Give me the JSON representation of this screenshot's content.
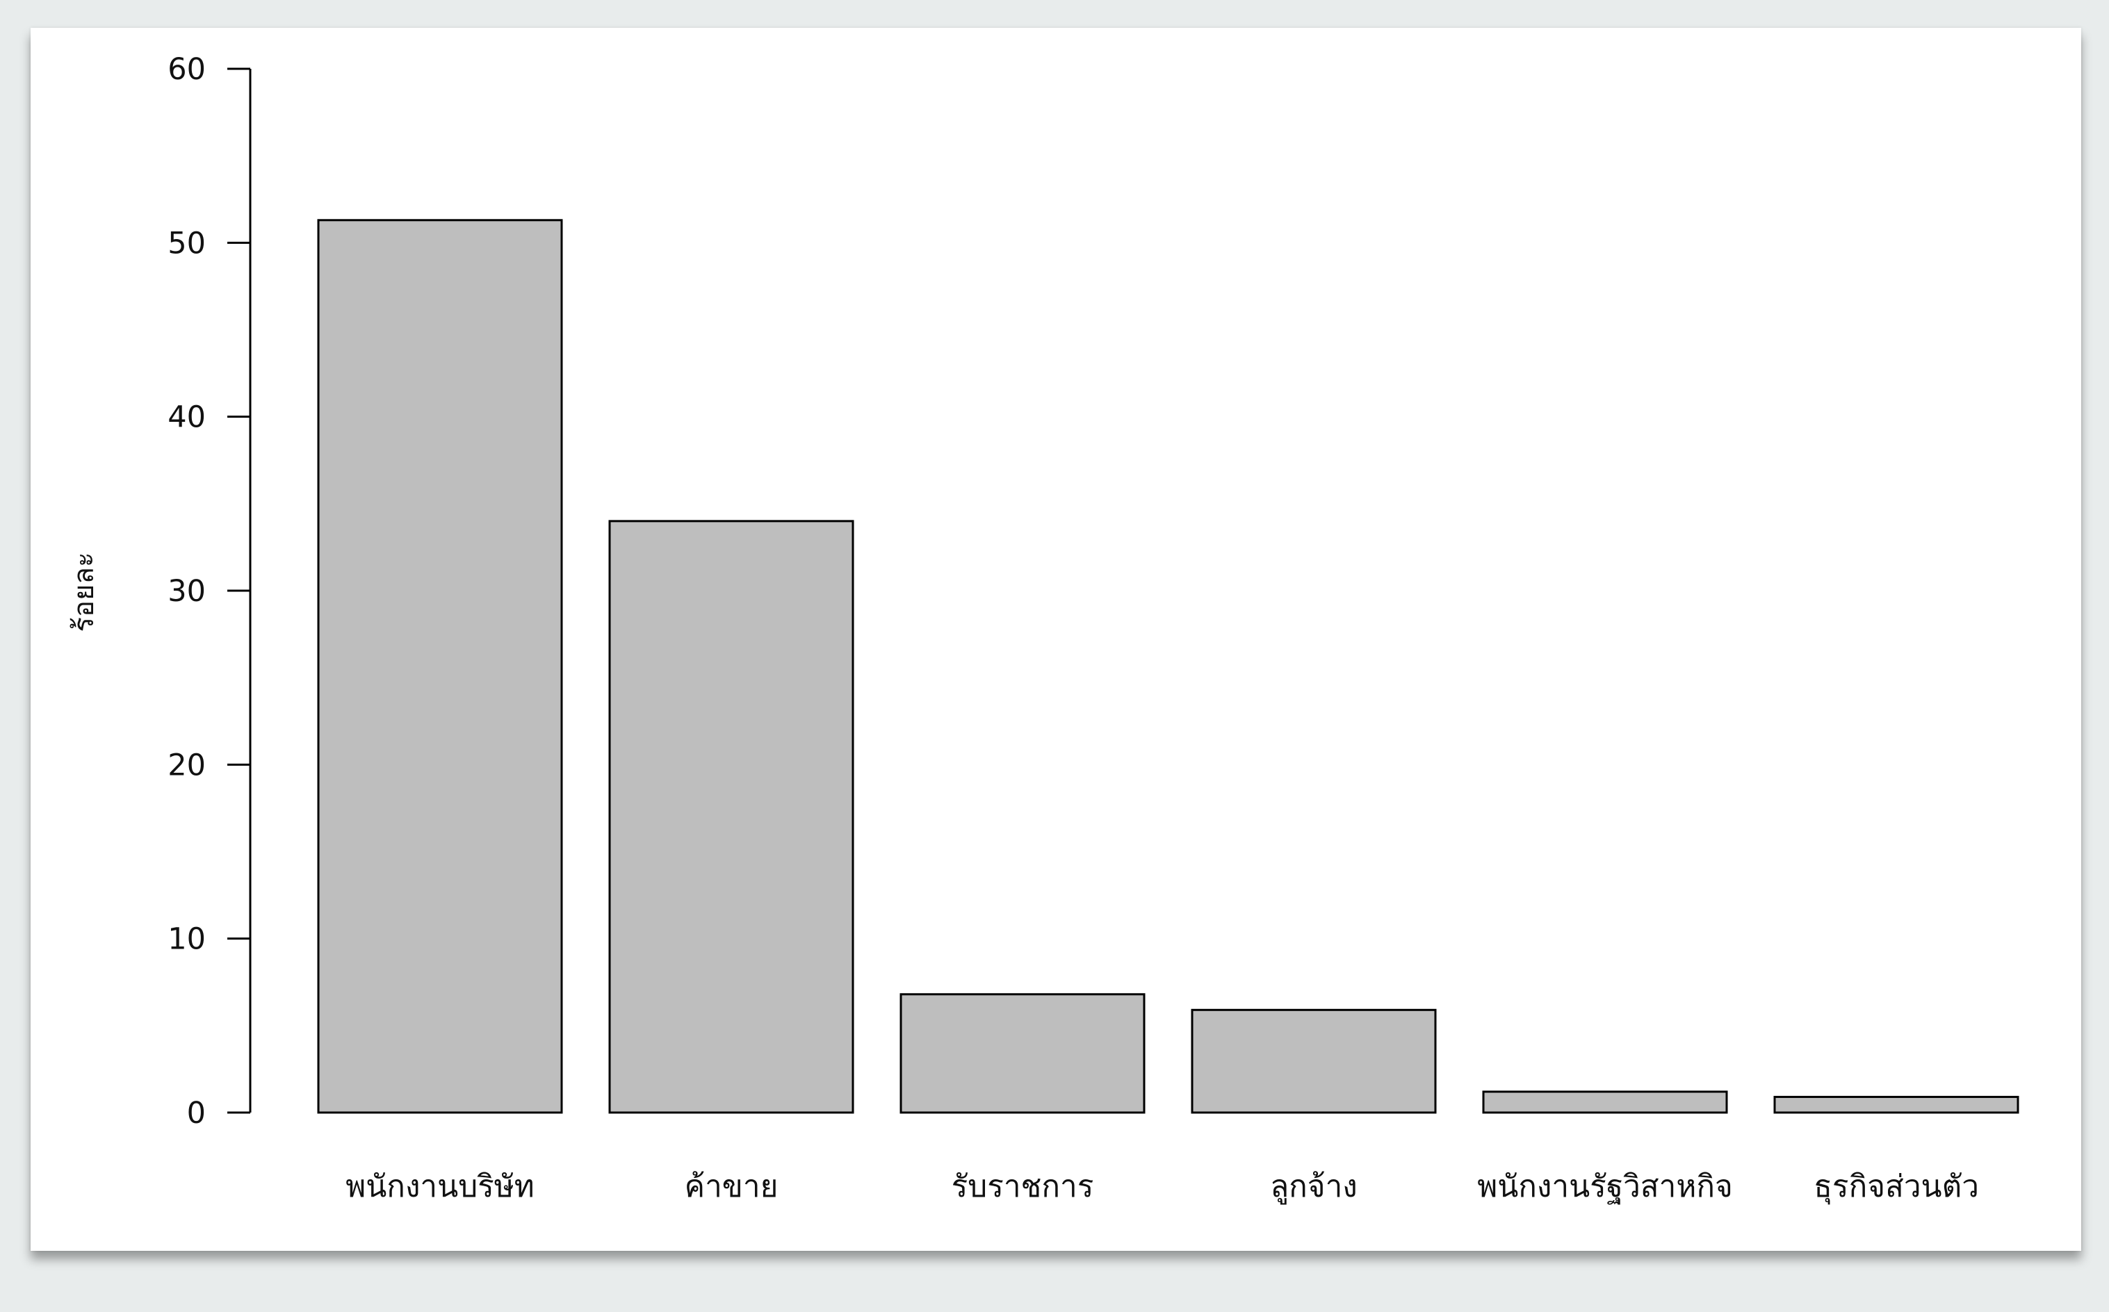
{
  "chart_data": {
    "type": "bar",
    "title": "",
    "xlabel": "",
    "ylabel": "ร้อยละ",
    "categories": [
      "พนักงานบริษัท",
      "ค้าขาย",
      "รับราชการ",
      "ลูกจ้าง",
      "พนักงานรัฐวิสาหกิจ",
      "ธุรกิจส่วนตัว"
    ],
    "values": [
      51.3,
      34.0,
      6.8,
      5.9,
      1.2,
      0.9
    ],
    "ylim": [
      0,
      60
    ],
    "yticks": [
      "0",
      "10",
      "20",
      "30",
      "40",
      "50",
      "60"
    ],
    "grid": false,
    "legend": "none",
    "colors": {
      "bar_fill": "#bebebe",
      "bar_stroke": "#000000",
      "axis": "#000000",
      "background": "#ffffff"
    }
  }
}
